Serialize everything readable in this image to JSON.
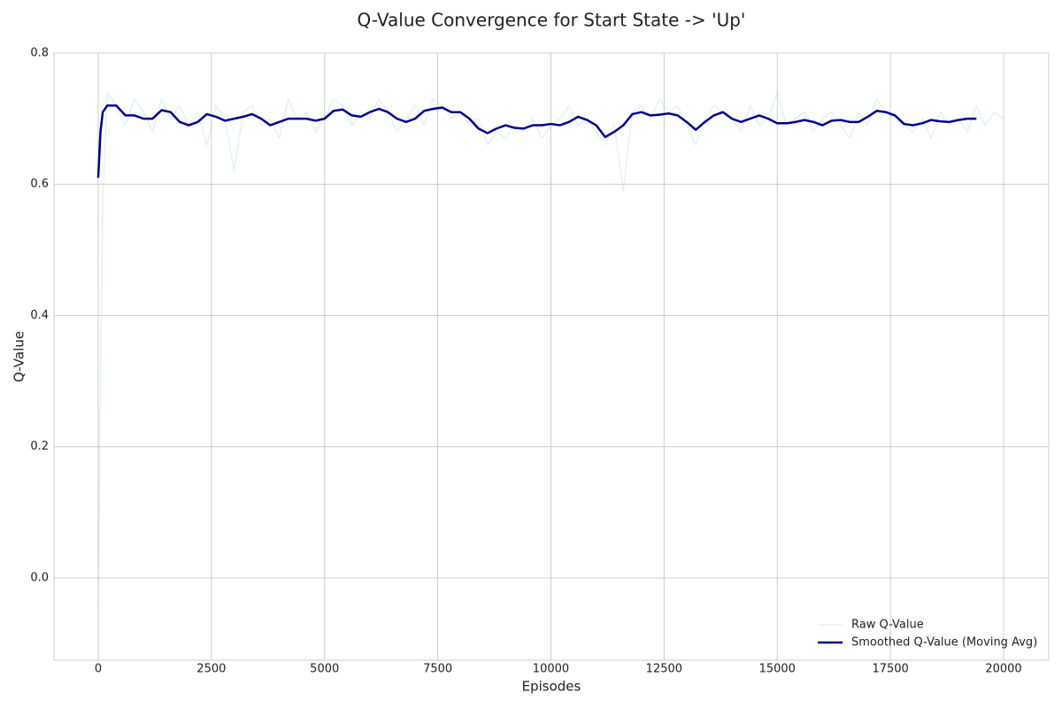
{
  "chart_data": {
    "type": "line",
    "title": "Q-Value Convergence for Start State -> 'Up'",
    "x_label": "Episodes",
    "y_label": "Q-Value",
    "x": [
      0,
      50,
      100,
      200,
      400,
      600,
      800,
      1000,
      1200,
      1400,
      1600,
      1800,
      2000,
      2200,
      2400,
      2600,
      2800,
      3000,
      3200,
      3400,
      3600,
      3800,
      4000,
      4200,
      4400,
      4600,
      4800,
      5000,
      5200,
      5400,
      5600,
      5800,
      6000,
      6200,
      6400,
      6600,
      6800,
      7000,
      7200,
      7400,
      7600,
      7800,
      8000,
      8200,
      8400,
      8600,
      8800,
      9000,
      9200,
      9400,
      9600,
      9800,
      10000,
      10200,
      10400,
      10600,
      10800,
      11000,
      11200,
      11400,
      11600,
      11800,
      12000,
      12200,
      12400,
      12600,
      12800,
      13000,
      13200,
      13400,
      13600,
      13800,
      14000,
      14200,
      14400,
      14600,
      14800,
      15000,
      15200,
      15400,
      15600,
      15800,
      16000,
      16200,
      16400,
      16600,
      16800,
      17000,
      17200,
      17400,
      17600,
      17800,
      18000,
      18200,
      18400,
      18600,
      18800,
      19000,
      19200,
      19400,
      19600,
      19800,
      20000
    ],
    "series": [
      {
        "name": "Raw Q-Value",
        "color": "#add8e6",
        "opacity": 0.35,
        "width": 1.5,
        "values": [
          -0.09,
          0.3,
          0.57,
          0.74,
          0.72,
          0.69,
          0.73,
          0.71,
          0.68,
          0.73,
          0.7,
          0.72,
          0.69,
          0.71,
          0.66,
          0.72,
          0.7,
          0.62,
          0.71,
          0.72,
          0.69,
          0.7,
          0.67,
          0.73,
          0.7,
          0.71,
          0.68,
          0.7,
          0.73,
          0.72,
          0.69,
          0.71,
          0.7,
          0.73,
          0.71,
          0.68,
          0.7,
          0.72,
          0.69,
          0.73,
          0.72,
          0.7,
          0.71,
          0.69,
          0.7,
          0.66,
          0.68,
          0.67,
          0.69,
          0.68,
          0.7,
          0.67,
          0.69,
          0.7,
          0.72,
          0.69,
          0.7,
          0.68,
          0.66,
          0.69,
          0.59,
          0.71,
          0.72,
          0.7,
          0.73,
          0.71,
          0.72,
          0.69,
          0.66,
          0.7,
          0.72,
          0.71,
          0.7,
          0.68,
          0.72,
          0.69,
          0.7,
          0.74,
          0.69,
          0.7,
          0.71,
          0.68,
          0.7,
          0.71,
          0.69,
          0.67,
          0.71,
          0.69,
          0.73,
          0.71,
          0.7,
          0.69,
          0.68,
          0.7,
          0.67,
          0.71,
          0.69,
          0.7,
          0.68,
          0.72,
          0.69,
          0.71,
          0.7
        ]
      },
      {
        "name": "Smoothed Q-Value (Moving Avg)",
        "color": "#00008b",
        "opacity": 1,
        "width": 2.5,
        "values": [
          0.61,
          0.68,
          0.71,
          0.72,
          0.72,
          0.705,
          0.705,
          0.7,
          0.7,
          0.713,
          0.71,
          0.695,
          0.69,
          0.695,
          0.707,
          0.703,
          0.697,
          0.7,
          0.703,
          0.707,
          0.7,
          0.69,
          0.695,
          0.7,
          0.7,
          0.7,
          0.697,
          0.7,
          0.712,
          0.714,
          0.705,
          0.703,
          0.71,
          0.715,
          0.71,
          0.7,
          0.695,
          0.7,
          0.712,
          0.715,
          0.717,
          0.71,
          0.71,
          0.7,
          0.685,
          0.678,
          0.685,
          0.69,
          0.686,
          0.685,
          0.69,
          0.69,
          0.692,
          0.69,
          0.695,
          0.703,
          0.698,
          0.69,
          0.672,
          0.68,
          0.69,
          0.707,
          0.71,
          0.705,
          0.706,
          0.708,
          0.705,
          0.695,
          0.683,
          0.695,
          0.705,
          0.71,
          0.7,
          0.695,
          0.7,
          0.705,
          0.7,
          0.693,
          0.693,
          0.695,
          0.698,
          0.695,
          0.69,
          0.697,
          0.698,
          0.695,
          0.695,
          0.703,
          0.712,
          0.71,
          0.705,
          0.692,
          0.69,
          0.693,
          0.698,
          0.696,
          0.695,
          0.698,
          0.7,
          0.7,
          null,
          null,
          null
        ]
      }
    ],
    "xlim": [
      -977,
      20997
    ],
    "ylim": [
      -0.1255,
      0.8
    ],
    "xticks": [
      0,
      2500,
      5000,
      7500,
      10000,
      12500,
      15000,
      17500,
      20000
    ],
    "yticks": [
      {
        "value": 0,
        "label": "0.0"
      },
      0.2,
      0.4,
      0.6,
      0.8
    ],
    "grid": true,
    "legend": "lower right"
  }
}
